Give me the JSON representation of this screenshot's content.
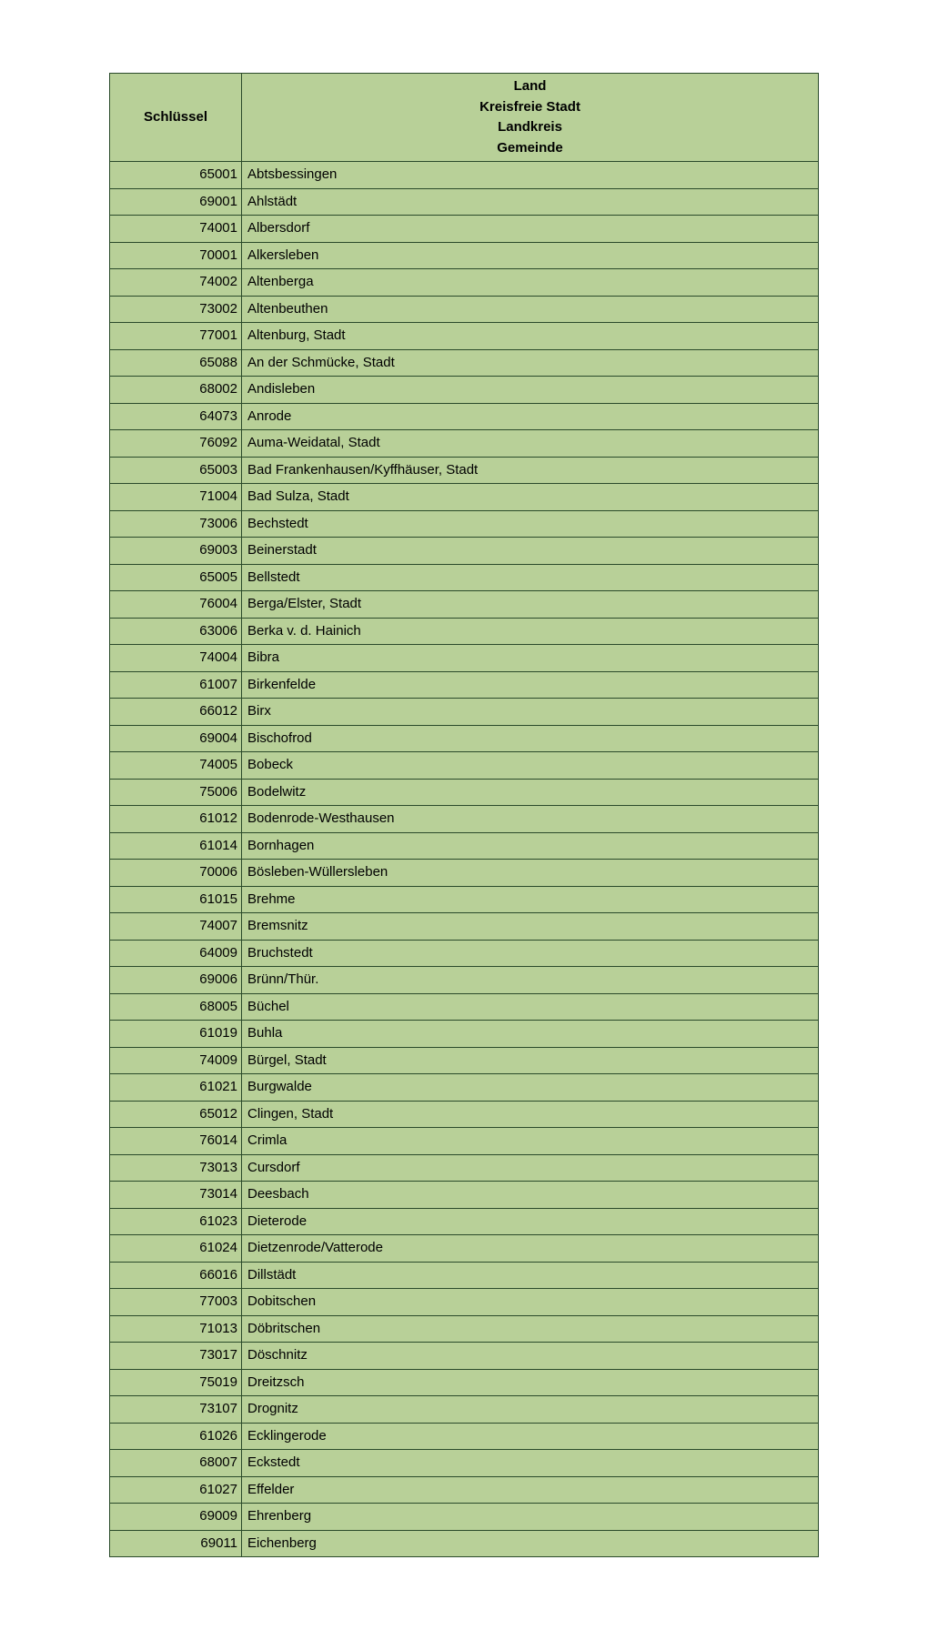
{
  "headers": {
    "schlussel": "Schlüssel",
    "land": "Land",
    "kreisfreie": "Kreisfreie Stadt",
    "landkreis": "Landkreis",
    "gemeinde": "Gemeinde"
  },
  "rows": [
    {
      "code": "65001",
      "name": "Abtsbessingen"
    },
    {
      "code": "69001",
      "name": "Ahlstädt"
    },
    {
      "code": "74001",
      "name": "Albersdorf"
    },
    {
      "code": "70001",
      "name": "Alkersleben"
    },
    {
      "code": "74002",
      "name": "Altenberga"
    },
    {
      "code": "73002",
      "name": "Altenbeuthen"
    },
    {
      "code": "77001",
      "name": "Altenburg, Stadt"
    },
    {
      "code": "65088",
      "name": "An der Schmücke, Stadt"
    },
    {
      "code": "68002",
      "name": "Andisleben"
    },
    {
      "code": "64073",
      "name": "Anrode"
    },
    {
      "code": "76092",
      "name": "Auma-Weidatal, Stadt"
    },
    {
      "code": "65003",
      "name": "Bad Frankenhausen/Kyffhäuser, Stadt"
    },
    {
      "code": "71004",
      "name": "Bad Sulza, Stadt"
    },
    {
      "code": "73006",
      "name": "Bechstedt"
    },
    {
      "code": "69003",
      "name": "Beinerstadt"
    },
    {
      "code": "65005",
      "name": "Bellstedt"
    },
    {
      "code": "76004",
      "name": "Berga/Elster, Stadt"
    },
    {
      "code": "63006",
      "name": "Berka v. d. Hainich"
    },
    {
      "code": "74004",
      "name": "Bibra"
    },
    {
      "code": "61007",
      "name": "Birkenfelde"
    },
    {
      "code": "66012",
      "name": "Birx"
    },
    {
      "code": "69004",
      "name": "Bischofrod"
    },
    {
      "code": "74005",
      "name": "Bobeck"
    },
    {
      "code": "75006",
      "name": "Bodelwitz"
    },
    {
      "code": "61012",
      "name": "Bodenrode-Westhausen"
    },
    {
      "code": "61014",
      "name": "Bornhagen"
    },
    {
      "code": "70006",
      "name": "Bösleben-Wüllersleben"
    },
    {
      "code": "61015",
      "name": "Brehme"
    },
    {
      "code": "74007",
      "name": "Bremsnitz"
    },
    {
      "code": "64009",
      "name": "Bruchstedt"
    },
    {
      "code": "69006",
      "name": "Brünn/Thür."
    },
    {
      "code": "68005",
      "name": "Büchel"
    },
    {
      "code": "61019",
      "name": "Buhla"
    },
    {
      "code": "74009",
      "name": "Bürgel, Stadt"
    },
    {
      "code": "61021",
      "name": "Burgwalde"
    },
    {
      "code": "65012",
      "name": "Clingen, Stadt"
    },
    {
      "code": "76014",
      "name": "Crimla"
    },
    {
      "code": "73013",
      "name": "Cursdorf"
    },
    {
      "code": "73014",
      "name": "Deesbach"
    },
    {
      "code": "61023",
      "name": "Dieterode"
    },
    {
      "code": "61024",
      "name": "Dietzenrode/Vatterode"
    },
    {
      "code": "66016",
      "name": "Dillstädt"
    },
    {
      "code": "77003",
      "name": "Dobitschen"
    },
    {
      "code": "71013",
      "name": "Döbritschen"
    },
    {
      "code": "73017",
      "name": "Döschnitz"
    },
    {
      "code": "75019",
      "name": "Dreitzsch"
    },
    {
      "code": "73107",
      "name": "Drognitz"
    },
    {
      "code": "61026",
      "name": "Ecklingerode"
    },
    {
      "code": "68007",
      "name": "Eckstedt"
    },
    {
      "code": "61027",
      "name": "Effelder"
    },
    {
      "code": "69009",
      "name": "Ehrenberg"
    },
    {
      "code": "69011",
      "name": "Eichenberg"
    }
  ],
  "styling": {
    "background_color": "#ffffff",
    "cell_background": "#b8d098",
    "border_color": "#2a4a2a",
    "font_size": 15,
    "font_family": "Arial",
    "schlussel_col_width": 145,
    "border_width": 1.5
  }
}
